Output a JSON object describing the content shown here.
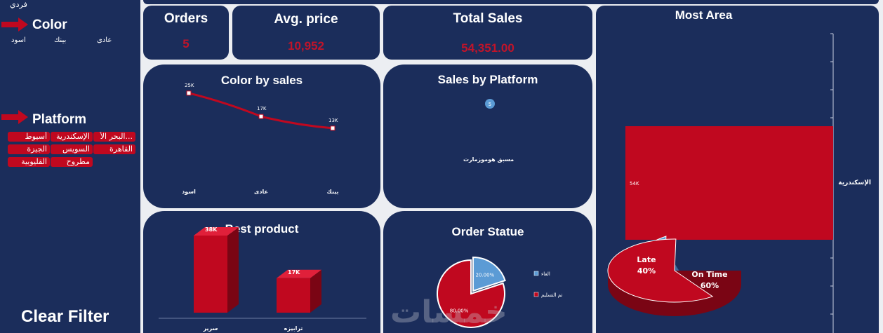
{
  "sidebar": {
    "top_label": "فردي",
    "color_heading": "Color",
    "color_items": [
      "عادى",
      "بينك",
      "اسود"
    ],
    "platform_heading": "Platform",
    "platform_items": [
      "البحر الأ...",
      "الإسكندرية",
      "أسيوط",
      "القاهرة",
      "السويس",
      "الجيزة",
      "مطروح",
      "القليوبية"
    ],
    "clear_filter": "Clear Filter"
  },
  "kpis": {
    "orders_title": "Orders",
    "orders_value": "5",
    "avg_title": "Avg. price",
    "avg_value": "10,952",
    "sales_title": "Total Sales",
    "sales_value": "54,351.00"
  },
  "color_chart": {
    "title": "Color by sales",
    "chart_data": {
      "type": "line",
      "categories": [
        "اسود",
        "عادى",
        "بينك"
      ],
      "values": [
        25,
        17,
        13
      ],
      "labels": [
        "25K",
        "17K",
        "13K"
      ]
    }
  },
  "platform_chart": {
    "title": "Sales by Platform",
    "chart_data": {
      "type": "scatter",
      "categories": [
        "مسبق هوموزمارت"
      ],
      "values": [
        5
      ],
      "labels": [
        "5"
      ]
    }
  },
  "product_chart": {
    "title": "Best product",
    "chart_data": {
      "type": "bar",
      "categories": [
        "سرير",
        "ترابيزه"
      ],
      "values": [
        38,
        17
      ],
      "labels": [
        "38K",
        "17K"
      ]
    }
  },
  "order_chart": {
    "title": "Order Statue",
    "chart_data": {
      "type": "pie",
      "categories": [
        "الغاء",
        "تم التسليم"
      ],
      "values": [
        20,
        80
      ],
      "labels": [
        "20.00%",
        "80.00%"
      ],
      "colors": [
        "#5b9bd5",
        "#c0081f"
      ]
    }
  },
  "area_chart": {
    "title": "Most Area",
    "chart_data": {
      "type": "bar",
      "categories": [
        "الإسكندرية"
      ],
      "values": [
        54
      ],
      "labels": [
        "54K"
      ]
    },
    "pie": {
      "late_label": "Late",
      "late_pct": "40%",
      "ontime_label": "On Time",
      "ontime_pct": "60%",
      "values": [
        40,
        60
      ]
    }
  },
  "watermark": "خمسات",
  "colors": {
    "navy": "#1b2d5b",
    "red": "#c0081f",
    "blue": "#5b9bd5",
    "bg": "#eceef2"
  }
}
